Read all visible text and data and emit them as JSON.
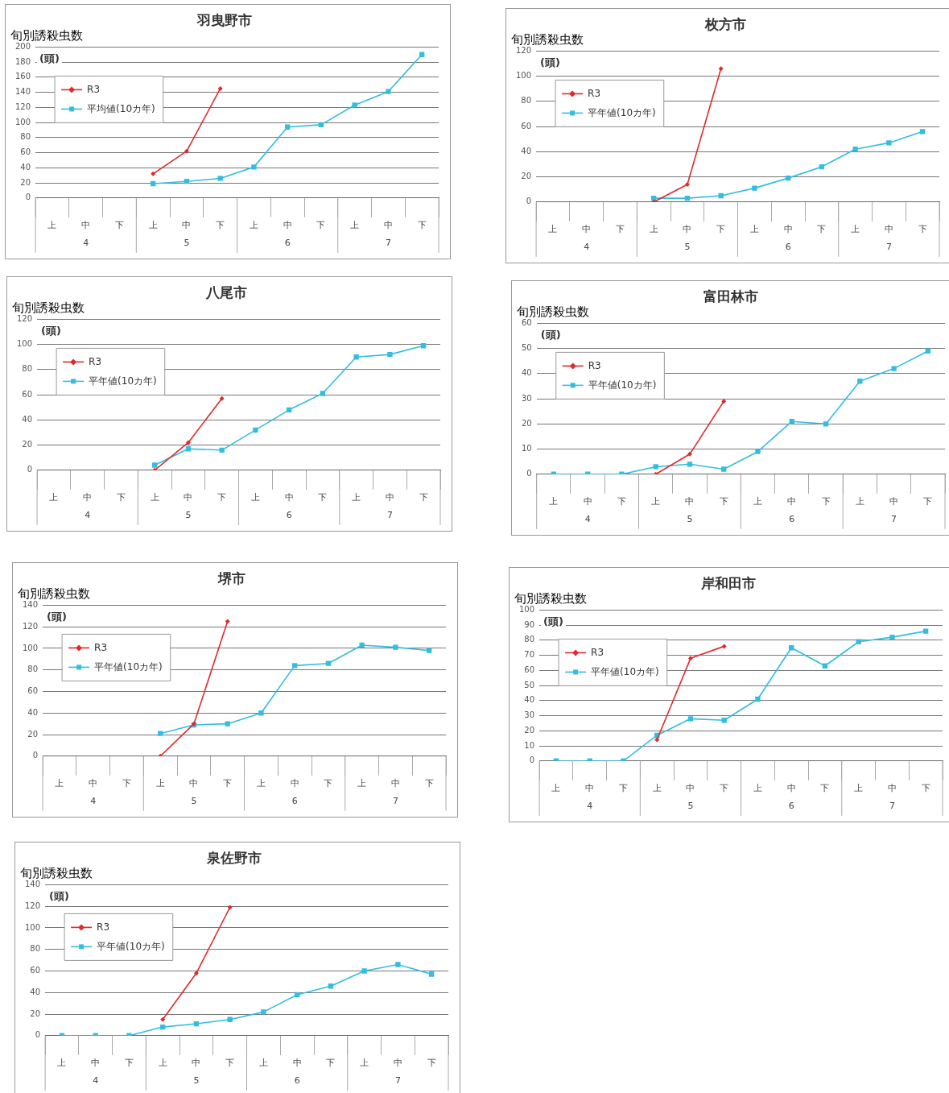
{
  "chart_data": [
    {
      "type": "line",
      "title": "羽曳野市",
      "subtitle": "旬別誘殺虫数",
      "ylabel": "(頭)",
      "categories": [
        "上",
        "中",
        "下",
        "上",
        "中",
        "下",
        "上",
        "中",
        "下",
        "上",
        "中",
        "下"
      ],
      "annotations": [
        "4",
        "5",
        "6",
        "7"
      ],
      "legend": "top left",
      "grid": "y",
      "ylim": [
        0,
        200
      ],
      "yticks": [
        0,
        20,
        40,
        60,
        80,
        100,
        120,
        140,
        160,
        180,
        200
      ],
      "series": [
        {
          "name": "R3",
          "color": "#e02a2a",
          "marker": "diamond",
          "values": [
            null,
            null,
            null,
            32,
            62,
            145,
            null,
            null,
            null,
            null,
            null,
            null
          ]
        },
        {
          "name": "平均値(10カ年)",
          "color": "#33bde0",
          "marker": "square",
          "values": [
            null,
            null,
            null,
            19,
            22,
            26,
            41,
            94,
            97,
            123,
            141,
            190
          ]
        }
      ]
    },
    {
      "type": "line",
      "title": "枚方市",
      "subtitle": "旬別誘殺虫数",
      "ylabel": "(頭)",
      "categories": [
        "上",
        "中",
        "下",
        "上",
        "中",
        "下",
        "上",
        "中",
        "下",
        "上",
        "中",
        "下"
      ],
      "annotations": [
        "4",
        "5",
        "6",
        "7"
      ],
      "legend": "top left",
      "grid": "y",
      "ylim": [
        0,
        120
      ],
      "yticks": [
        0,
        20,
        40,
        60,
        80,
        100,
        120
      ],
      "series": [
        {
          "name": "R3",
          "color": "#e02a2a",
          "marker": "diamond",
          "values": [
            null,
            null,
            null,
            0,
            14,
            106,
            null,
            null,
            null,
            null,
            null,
            null
          ]
        },
        {
          "name": "平年値(10カ年)",
          "color": "#33bde0",
          "marker": "square",
          "values": [
            null,
            null,
            null,
            3,
            3,
            5,
            11,
            19,
            28,
            42,
            47,
            56
          ]
        }
      ]
    },
    {
      "type": "line",
      "title": "八尾市",
      "subtitle": "旬別誘殺虫数",
      "ylabel": "(頭)",
      "categories": [
        "上",
        "中",
        "下",
        "上",
        "中",
        "下",
        "上",
        "中",
        "下",
        "上",
        "中",
        "下"
      ],
      "annotations": [
        "4",
        "5",
        "6",
        "7"
      ],
      "legend": "top left",
      "grid": "y",
      "ylim": [
        0,
        120
      ],
      "yticks": [
        0,
        20,
        40,
        60,
        80,
        100,
        120
      ],
      "series": [
        {
          "name": "R3",
          "color": "#e02a2a",
          "marker": "diamond",
          "values": [
            null,
            null,
            null,
            0,
            22,
            57,
            null,
            null,
            null,
            null,
            null,
            null
          ]
        },
        {
          "name": "平年値(10カ年)",
          "color": "#33bde0",
          "marker": "square",
          "values": [
            null,
            null,
            null,
            4,
            17,
            16,
            32,
            48,
            61,
            90,
            92,
            99
          ]
        }
      ]
    },
    {
      "type": "line",
      "title": "富田林市",
      "subtitle": "旬別誘殺虫数",
      "ylabel": "(頭)",
      "categories": [
        "上",
        "中",
        "下",
        "上",
        "中",
        "下",
        "上",
        "中",
        "下",
        "上",
        "中",
        "下"
      ],
      "annotations": [
        "4",
        "5",
        "6",
        "7"
      ],
      "legend": "top left",
      "grid": "y",
      "ylim": [
        0,
        60
      ],
      "yticks": [
        0,
        10,
        20,
        30,
        40,
        50,
        60
      ],
      "series": [
        {
          "name": "R3",
          "color": "#e02a2a",
          "marker": "diamond",
          "values": [
            null,
            null,
            null,
            0,
            8,
            29,
            null,
            null,
            null,
            null,
            null,
            null
          ]
        },
        {
          "name": "平年値(10カ年)",
          "color": "#33bde0",
          "marker": "square",
          "values": [
            0,
            0,
            0,
            3,
            4,
            2,
            9,
            21,
            20,
            37,
            42,
            49
          ]
        }
      ]
    },
    {
      "type": "line",
      "title": "堺市",
      "subtitle": "旬別誘殺虫数",
      "ylabel": "(頭)",
      "categories": [
        "上",
        "中",
        "下",
        "上",
        "中",
        "下",
        "上",
        "中",
        "下",
        "上",
        "中",
        "下"
      ],
      "annotations": [
        "4",
        "5",
        "6",
        "7"
      ],
      "legend": "top left",
      "grid": "y",
      "ylim": [
        0,
        140
      ],
      "yticks": [
        0,
        20,
        40,
        60,
        80,
        100,
        120,
        140
      ],
      "series": [
        {
          "name": "R3",
          "color": "#e02a2a",
          "marker": "diamond",
          "values": [
            null,
            null,
            null,
            0,
            30,
            125,
            null,
            null,
            null,
            null,
            null,
            null
          ]
        },
        {
          "name": "平年値(10カ年)",
          "color": "#33bde0",
          "marker": "square",
          "values": [
            null,
            null,
            null,
            21,
            29,
            30,
            40,
            84,
            86,
            103,
            101,
            98
          ]
        }
      ]
    },
    {
      "type": "line",
      "title": "岸和田市",
      "subtitle": "旬別誘殺虫数",
      "ylabel": "(頭)",
      "categories": [
        "上",
        "中",
        "下",
        "上",
        "中",
        "下",
        "上",
        "中",
        "下",
        "上",
        "中",
        "下"
      ],
      "annotations": [
        "4",
        "5",
        "6",
        "7"
      ],
      "legend": "top left",
      "grid": "y",
      "ylim": [
        0,
        100
      ],
      "yticks": [
        0,
        10,
        20,
        30,
        40,
        50,
        60,
        70,
        80,
        90,
        100
      ],
      "series": [
        {
          "name": "R3",
          "color": "#e02a2a",
          "marker": "diamond",
          "values": [
            null,
            null,
            null,
            14,
            68,
            76,
            null,
            null,
            null,
            null,
            null,
            null
          ]
        },
        {
          "name": "平年値(10カ年)",
          "color": "#33bde0",
          "marker": "square",
          "values": [
            0,
            0,
            0,
            17,
            28,
            27,
            41,
            75,
            63,
            79,
            82,
            86
          ]
        }
      ]
    },
    {
      "type": "line",
      "title": "泉佐野市",
      "subtitle": "旬別誘殺虫数",
      "ylabel": "(頭)",
      "categories": [
        "上",
        "中",
        "下",
        "上",
        "中",
        "下",
        "上",
        "中",
        "下",
        "上",
        "中",
        "下"
      ],
      "annotations": [
        "4",
        "5",
        "6",
        "7"
      ],
      "legend": "top left",
      "grid": "y",
      "ylim": [
        0,
        140
      ],
      "yticks": [
        0,
        20,
        40,
        60,
        80,
        100,
        120,
        140
      ],
      "series": [
        {
          "name": "R3",
          "color": "#e02a2a",
          "marker": "diamond",
          "values": [
            null,
            null,
            null,
            15,
            58,
            119,
            null,
            null,
            null,
            null,
            null,
            null
          ]
        },
        {
          "name": "平年値(10カ年)",
          "color": "#33bde0",
          "marker": "square",
          "values": [
            0,
            0,
            0,
            8,
            11,
            15,
            22,
            38,
            46,
            60,
            66,
            57
          ]
        }
      ]
    }
  ]
}
